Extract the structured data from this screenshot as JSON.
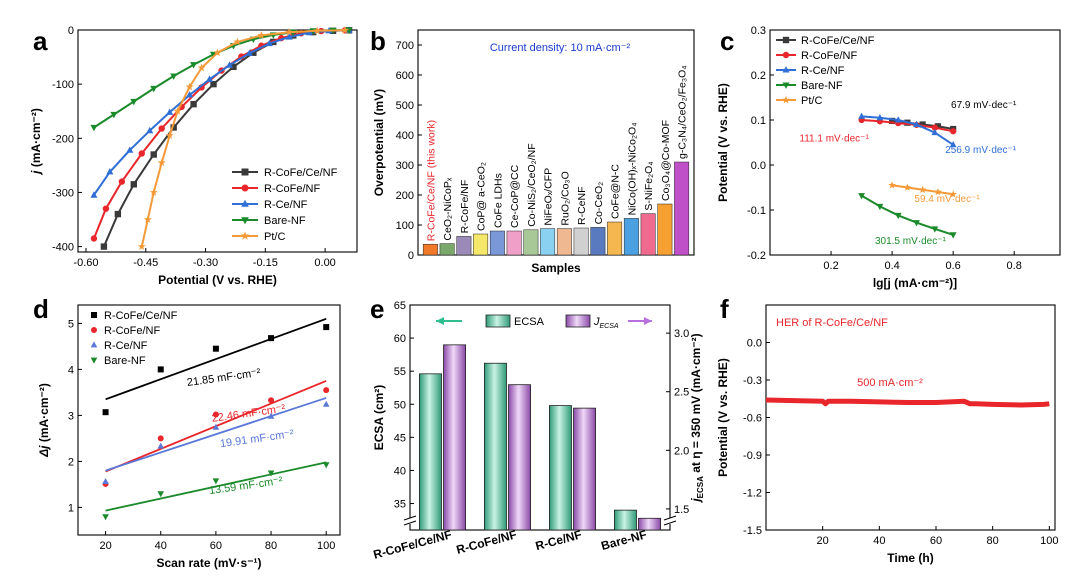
{
  "chart_data": [
    {
      "panel": "a",
      "type": "line",
      "xlabel": "Potential (V vs. RHE)",
      "ylabel": "j (mA·cm⁻²)",
      "ylabel_main": "j",
      "ylabel_unit": " (mA·cm⁻²)",
      "xlim": [
        -0.62,
        0.08
      ],
      "ylim": [
        -410,
        0
      ],
      "xticks": [
        "-0.60",
        "-0.45",
        "-0.30",
        "-0.15",
        "0.00"
      ],
      "xtick_values": [
        -0.6,
        -0.45,
        -0.3,
        -0.15,
        0.0
      ],
      "yticks": [
        "-400",
        "-300",
        "-200",
        "-100",
        "0"
      ],
      "ytick_values": [
        -400,
        -300,
        -200,
        -100,
        0
      ],
      "legend": "bottom-right",
      "series": [
        {
          "name": "R-CoFe/Ce/NF",
          "color": "#3a3a3a",
          "marker": "square",
          "x": [
            -0.555,
            -0.52,
            -0.48,
            -0.43,
            -0.38,
            -0.33,
            -0.28,
            -0.23,
            -0.18,
            -0.13,
            -0.08,
            -0.03,
            0.02,
            0.06
          ],
          "y": [
            -400,
            -340,
            -285,
            -230,
            -180,
            -137,
            -100,
            -68,
            -42,
            -22,
            -10,
            -4,
            -1.5,
            -0.5
          ]
        },
        {
          "name": "R-CoFe/NF",
          "color": "#e8262b",
          "marker": "circle",
          "x": [
            -0.58,
            -0.55,
            -0.51,
            -0.46,
            -0.41,
            -0.36,
            -0.31,
            -0.26,
            -0.21,
            -0.16,
            -0.11,
            -0.06,
            -0.01,
            0.05
          ],
          "y": [
            -385,
            -330,
            -280,
            -228,
            -182,
            -142,
            -106,
            -75,
            -49,
            -29,
            -15,
            -6,
            -2,
            -0.5
          ]
        },
        {
          "name": "R-Ce/NF",
          "color": "#2f6fd6",
          "marker": "triangle-up",
          "x": [
            -0.58,
            -0.54,
            -0.49,
            -0.44,
            -0.39,
            -0.34,
            -0.29,
            -0.24,
            -0.19,
            -0.14,
            -0.09,
            -0.04,
            0.01,
            0.06
          ],
          "y": [
            -305,
            -262,
            -222,
            -186,
            -152,
            -120,
            -91,
            -65,
            -43,
            -25,
            -13,
            -5,
            -1.5,
            -0.5
          ]
        },
        {
          "name": "Bare-NF",
          "color": "#1a8a2a",
          "marker": "triangle-down",
          "x": [
            -0.58,
            -0.53,
            -0.48,
            -0.43,
            -0.38,
            -0.33,
            -0.28,
            -0.23,
            -0.18,
            -0.13,
            -0.08,
            -0.03,
            0.02,
            0.06
          ],
          "y": [
            -180,
            -156,
            -132,
            -108,
            -85,
            -64,
            -45,
            -29,
            -17,
            -9,
            -4,
            -1.5,
            -0.5,
            -0.2
          ]
        },
        {
          "name": "Pt/C",
          "color": "#f59a38",
          "marker": "star",
          "x": [
            -0.46,
            -0.445,
            -0.43,
            -0.41,
            -0.39,
            -0.37,
            -0.34,
            -0.31,
            -0.27,
            -0.22,
            -0.16,
            -0.09,
            -0.02,
            0.05
          ],
          "y": [
            -400,
            -350,
            -300,
            -245,
            -195,
            -150,
            -105,
            -70,
            -42,
            -22,
            -10,
            -4,
            -1.5,
            -0.5
          ]
        }
      ]
    },
    {
      "panel": "b",
      "type": "bar",
      "xlabel": "Samples",
      "ylabel": "Overpotential (mV)",
      "annotation": "Current density: 10 mA·cm⁻²",
      "ylim": [
        0,
        750
      ],
      "yticks": [
        "0",
        "100",
        "200",
        "300",
        "400",
        "500",
        "600",
        "700"
      ],
      "ytick_values": [
        0,
        100,
        200,
        300,
        400,
        500,
        600,
        700
      ],
      "categories": [
        "R-CoFe/Ce/NF (this work)",
        "CeO₂-NiCoPₓ",
        "R-CoFe/NF",
        "CoP@ a-CeO₂",
        "CoFe LDHs",
        "Ce-CoP@CC",
        "Co-NiS₂/CeO₂/NF",
        "NiFeOₓ/CFP",
        "RuO₂/Co₃O",
        "R-CeNF",
        "Co-CeO₂",
        "CoFe@N-C",
        "NiCo(OH)ₓ-NiCo₂O₄",
        "S-NiFe₂O₄",
        "Co₃O₄@Co-MOF",
        "g-C₃N₄/CeO₂/Fe₃O₄"
      ],
      "values": [
        36,
        38,
        62,
        70,
        80,
        80,
        84,
        88,
        88,
        90,
        92,
        110,
        122,
        138,
        170,
        310
      ],
      "colors": [
        "#f07a2a",
        "#7aa86a",
        "#9b8ab8",
        "#f5e76a",
        "#7a98d8",
        "#f0a0c8",
        "#a8c898",
        "#8ad0f0",
        "#f0b890",
        "#d0d0d0",
        "#5a7ac0",
        "#f5b850",
        "#4aa0e0",
        "#f06a90",
        "#f5a030",
        "#c050c8"
      ]
    },
    {
      "panel": "c",
      "type": "scatter",
      "xlabel": "lg[j (mA·cm⁻²)]",
      "ylabel": "Potential (V vs. RHE)",
      "xlim": [
        0.0,
        0.95
      ],
      "ylim": [
        -0.2,
        0.3
      ],
      "xticks": [
        "0.2",
        "0.4",
        "0.6",
        "0.8"
      ],
      "xtick_values": [
        0.2,
        0.4,
        0.6,
        0.8
      ],
      "yticks": [
        "-0.2",
        "-0.1",
        "0.0",
        "0.1",
        "0.2",
        "0.3"
      ],
      "ytick_values": [
        -0.2,
        -0.1,
        0.0,
        0.1,
        0.2,
        0.3
      ],
      "legend": "top-left",
      "series": [
        {
          "name": "R-CoFe/Ce/NF",
          "color": "#3a3a3a",
          "marker": "square",
          "x": [
            0.4,
            0.45,
            0.5,
            0.55,
            0.6
          ],
          "y": [
            0.098,
            0.094,
            0.09,
            0.086,
            0.08
          ]
        },
        {
          "name": "R-CoFe/NF",
          "color": "#e8262b",
          "marker": "circle",
          "x": [
            0.3,
            0.36,
            0.42,
            0.48,
            0.54,
            0.6
          ],
          "y": [
            0.1,
            0.097,
            0.093,
            0.089,
            0.083,
            0.075
          ]
        },
        {
          "name": "R-Ce/NF",
          "color": "#2f6fd6",
          "marker": "triangle-up",
          "x": [
            0.3,
            0.36,
            0.42,
            0.48,
            0.54,
            0.6
          ],
          "y": [
            0.108,
            0.105,
            0.1,
            0.09,
            0.072,
            0.045
          ]
        },
        {
          "name": "Bare-NF",
          "color": "#1a8a2a",
          "marker": "triangle-down",
          "x": [
            0.3,
            0.36,
            0.42,
            0.48,
            0.54,
            0.6
          ],
          "y": [
            -0.068,
            -0.092,
            -0.112,
            -0.128,
            -0.142,
            -0.155
          ]
        },
        {
          "name": "Pt/C",
          "color": "#f59a38",
          "marker": "star",
          "x": [
            0.4,
            0.45,
            0.5,
            0.55,
            0.6
          ],
          "y": [
            -0.045,
            -0.05,
            -0.055,
            -0.06,
            -0.065
          ]
        }
      ],
      "annotations": [
        {
          "text": "67.9 mV·dec⁻¹",
          "color": "#000000",
          "x": 0.7,
          "y": 0.127
        },
        {
          "text": "111.1 mV·dec⁻¹",
          "color": "#e8262b",
          "x": 0.21,
          "y": 0.052
        },
        {
          "text": "256.9 mV·dec⁻¹",
          "color": "#2f6fd6",
          "x": 0.69,
          "y": 0.027
        },
        {
          "text": "59.4 mV·dec⁻¹",
          "color": "#f59a38",
          "x": 0.58,
          "y": -0.082
        },
        {
          "text": "301.5 mV·dec⁻¹",
          "color": "#1a8a2a",
          "x": 0.46,
          "y": -0.175
        }
      ]
    },
    {
      "panel": "d",
      "type": "scatter",
      "xlabel": "Scan rate (mV·s⁻¹)",
      "ylabel": "Δj (mA·cm⁻²)",
      "ylabel_main": "Δj",
      "ylabel_unit": " (mA·cm⁻²)",
      "xlim": [
        10,
        105
      ],
      "ylim": [
        0.4,
        5.4
      ],
      "xticks": [
        "20",
        "40",
        "60",
        "80",
        "100"
      ],
      "xtick_values": [
        20,
        40,
        60,
        80,
        100
      ],
      "yticks": [
        "1",
        "2",
        "3",
        "4",
        "5"
      ],
      "ytick_values": [
        1,
        2,
        3,
        4,
        5
      ],
      "legend": "top-left",
      "series": [
        {
          "name": "R-CoFe/Ce/NF",
          "color": "#000000",
          "marker": "square",
          "x": [
            20,
            40,
            60,
            80,
            100
          ],
          "y": [
            3.07,
            4.0,
            4.45,
            4.68,
            4.92
          ],
          "fit": [
            3.35,
            5.1
          ]
        },
        {
          "name": "R-CoFe/NF",
          "color": "#e8262b",
          "marker": "circle",
          "x": [
            20,
            40,
            60,
            80,
            100
          ],
          "y": [
            1.51,
            2.5,
            3.02,
            3.33,
            3.55
          ],
          "fit": [
            1.78,
            3.75
          ]
        },
        {
          "name": "R-Ce/NF",
          "color": "#5a78d8",
          "marker": "triangle-up",
          "x": [
            20,
            40,
            60,
            80,
            100
          ],
          "y": [
            1.56,
            2.33,
            2.74,
            2.98,
            3.24
          ],
          "fit": [
            1.8,
            3.38
          ]
        },
        {
          "name": "Bare-NF",
          "color": "#1a8a2a",
          "marker": "triangle-down",
          "x": [
            20,
            40,
            60,
            80,
            100
          ],
          "y": [
            0.8,
            1.3,
            1.58,
            1.75,
            1.93
          ],
          "fit": [
            0.93,
            1.98
          ]
        }
      ],
      "annotations": [
        {
          "text": "21.85 mF·cm⁻²",
          "color": "#000000",
          "x": 63,
          "y": 3.75
        },
        {
          "text": "22.46 mF·cm⁻²",
          "color": "#e8262b",
          "x": 72,
          "y": 2.97
        },
        {
          "text": "19.91 mF·cm⁻²",
          "color": "#5a78d8",
          "x": 75,
          "y": 2.42
        },
        {
          "text": "13.59 mF·cm⁻²",
          "color": "#1a8a2a",
          "x": 71,
          "y": 1.4
        }
      ]
    },
    {
      "panel": "e",
      "type": "bar",
      "ylabel": "ECSA (cm²)",
      "y2label": "jECSA at η = 350 mV (mA·cm⁻²)",
      "y2label_main": "j",
      "y2label_sub": "ECSA",
      "y2label_rest": " at η = 350 mV (mA·cm⁻²)",
      "categories": [
        "R-CoFe/Ce/NF",
        "R-CoFe/NF",
        "R-Ce/NF",
        "Bare-NF"
      ],
      "series": [
        {
          "name": "ECSA",
          "color": "#6fcfb0",
          "axis": "left",
          "values": [
            54.6,
            56.2,
            49.8,
            34.0
          ]
        },
        {
          "name": "jECSA",
          "name_main": "J",
          "name_sub": "ECSA",
          "color": "#c690d8",
          "axis": "right",
          "values": [
            2.9,
            2.56,
            2.36,
            1.42
          ]
        }
      ],
      "ylim_left": [
        31,
        65
      ],
      "yticks_left": [
        "35",
        "40",
        "45",
        "50",
        "55",
        "60",
        "65"
      ],
      "ytick_values_left": [
        35,
        40,
        45,
        50,
        55,
        60,
        65
      ],
      "ylim_right": [
        1.32,
        3.24
      ],
      "yticks_right": [
        "1.5",
        "2.0",
        "2.5",
        "3.0"
      ],
      "ytick_values_right": [
        1.5,
        2.0,
        2.5,
        3.0
      ],
      "legend": "top"
    },
    {
      "panel": "f",
      "type": "line",
      "xlabel": "Time (h)",
      "ylabel": "Potential (V vs. RHE)",
      "title": "HER of R-CoFe/Ce/NF",
      "annotation": "500 mA·cm⁻²",
      "xlim": [
        0,
        102
      ],
      "ylim": [
        -1.5,
        0.3
      ],
      "xticks": [
        "20",
        "40",
        "60",
        "80",
        "100"
      ],
      "xtick_values": [
        20,
        40,
        60,
        80,
        100
      ],
      "yticks": [
        "-1.5",
        "-1.2",
        "-0.9",
        "-0.6",
        "-0.3",
        "0.0"
      ],
      "ytick_values": [
        -1.5,
        -1.2,
        -0.9,
        -0.6,
        -0.3,
        0.0
      ],
      "series": [
        {
          "name": "",
          "color": "#e8262b",
          "x": [
            0,
            10,
            20,
            21,
            22,
            30,
            40,
            50,
            60,
            70,
            72,
            74,
            80,
            90,
            98,
            100
          ],
          "y": [
            -0.46,
            -0.465,
            -0.47,
            -0.49,
            -0.47,
            -0.47,
            -0.475,
            -0.48,
            -0.48,
            -0.47,
            -0.49,
            -0.49,
            -0.495,
            -0.5,
            -0.495,
            -0.49
          ]
        }
      ]
    }
  ]
}
